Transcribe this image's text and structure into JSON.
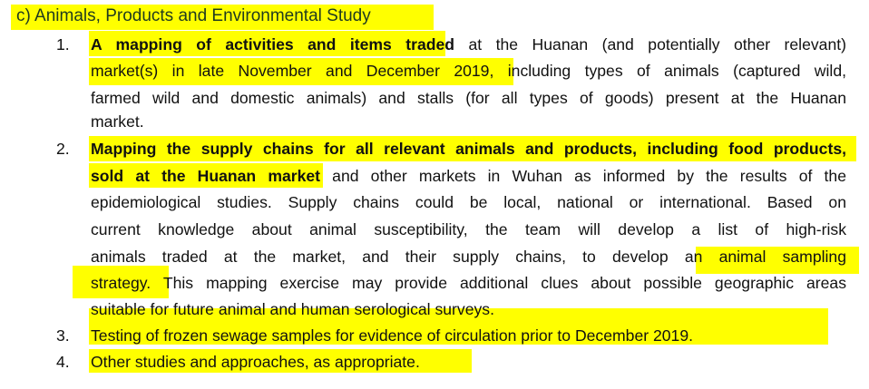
{
  "section_title": "c) Animals, Products and Environmental Study",
  "highlight_color": "#ffff00",
  "items": [
    {
      "number": "1.",
      "lines": [
        {
          "bold": "A mapping of activities and items traded",
          "text": " at the Huanan (and potentially other relevant)"
        },
        {
          "text": "market(s) in late November and December 2019, including types of animals (captured wild,"
        },
        {
          "text": "farmed wild and domestic animals) and stalls (for all types of goods) present at the Huanan"
        },
        {
          "text": "market."
        }
      ]
    },
    {
      "number": "2.",
      "lines": [
        {
          "bold": "Mapping the supply chains for all relevant animals and products, including food products,"
        },
        {
          "bold": "sold at the Huanan market",
          "text": " and other markets in Wuhan as informed by the results of the"
        },
        {
          "text": "epidemiological studies. Supply chains could be local, national or international. Based on"
        },
        {
          "text": "current knowledge about animal susceptibility, the team will develop a list of high-risk"
        },
        {
          "text": "animals traded at the market, and their supply chains, to develop an animal sampling"
        },
        {
          "text": "strategy. This mapping exercise may provide additional clues about possible geographic areas"
        },
        {
          "text": "suitable for future animal and human serological surveys."
        }
      ]
    },
    {
      "number": "3.",
      "lines": [
        {
          "text": "Testing of frozen sewage samples for evidence of circulation prior to December 2019."
        }
      ]
    },
    {
      "number": "4.",
      "lines": [
        {
          "text": "Other studies and approaches, as appropriate."
        }
      ]
    }
  ]
}
